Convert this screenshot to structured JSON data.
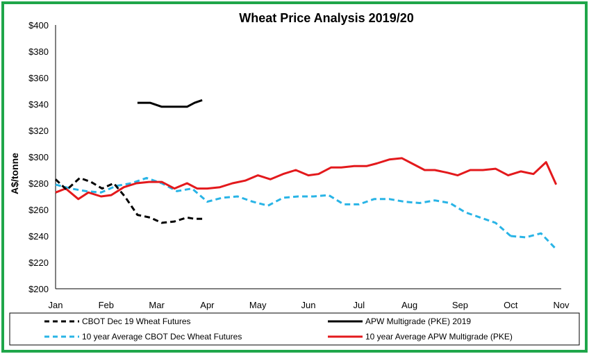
{
  "chart_data": {
    "type": "line",
    "title": "Wheat Price Analysis 2019/20",
    "xlabel": "",
    "ylabel": "A$/tonne",
    "x_ticks": [
      "Jan",
      "Feb",
      "Mar",
      "Apr",
      "May",
      "Jun",
      "Jul",
      "Aug",
      "Sep",
      "Oct",
      "Nov"
    ],
    "xlim": [
      0,
      10
    ],
    "ylim": [
      200,
      400
    ],
    "y_ticks": [
      200,
      220,
      240,
      260,
      280,
      300,
      320,
      340,
      360,
      380,
      400
    ],
    "y_tick_labels": [
      "$200",
      "$220",
      "$240",
      "$260",
      "$280",
      "$300",
      "$320",
      "$340",
      "$360",
      "$380",
      "$400"
    ],
    "grid": false,
    "legend_position": "bottom",
    "series": [
      {
        "name": "CBOT Dec 19 Wheat Futures",
        "color": "#000000",
        "style": "dashed",
        "x": [
          0,
          0.22,
          0.48,
          0.7,
          0.92,
          1.15,
          1.37,
          1.62,
          1.87,
          2.1,
          2.35,
          2.6,
          2.75,
          2.9
        ],
        "y": [
          283,
          275,
          284,
          281,
          276,
          280,
          270,
          256,
          254,
          250,
          251,
          254,
          253,
          253
        ]
      },
      {
        "name": "APW Multigrade (PKE) 2019",
        "color": "#000000",
        "style": "solid",
        "x": [
          1.62,
          1.87,
          2.1,
          2.35,
          2.6,
          2.75,
          2.9
        ],
        "y": [
          341,
          341,
          338,
          338,
          338,
          341,
          343
        ]
      },
      {
        "name": "10 year Average CBOT Dec  Wheat Futures",
        "color": "#29b4e6",
        "style": "dashed",
        "x": [
          0,
          0.3,
          0.6,
          0.9,
          1.2,
          1.5,
          1.8,
          2.1,
          2.4,
          2.7,
          3.0,
          3.3,
          3.6,
          3.9,
          4.2,
          4.5,
          4.8,
          5.1,
          5.4,
          5.7,
          6.0,
          6.3,
          6.6,
          6.9,
          7.2,
          7.5,
          7.8,
          8.1,
          8.4,
          8.7,
          9.0,
          9.3,
          9.6,
          9.9
        ],
        "y": [
          279,
          276,
          274,
          273,
          278,
          280,
          284,
          280,
          274,
          276,
          266,
          269,
          270,
          266,
          263,
          269,
          270,
          270,
          271,
          264,
          264,
          268,
          268,
          266,
          265,
          267,
          265,
          258,
          254,
          250,
          240,
          241,
          243,
          242
        ],
        "x_tail": [
          9.3,
          9.6,
          9.9
        ],
        "y_tail": [
          239,
          242,
          230
        ]
      },
      {
        "name": "10 year Average APW Multigrade (PKE)",
        "color": "#e3191c",
        "style": "solid",
        "x": [
          0,
          0.2,
          0.45,
          0.65,
          0.9,
          1.1,
          1.35,
          1.6,
          1.85,
          2.1,
          2.35,
          2.6,
          2.8,
          3.0,
          3.25,
          3.5,
          3.75,
          4.0,
          4.25,
          4.5,
          4.75,
          5.0,
          5.2,
          5.45,
          5.65,
          5.9,
          6.15,
          6.35,
          6.6,
          6.85,
          7.05,
          7.3,
          7.5,
          7.75,
          7.95,
          8.2,
          8.45,
          8.7,
          8.95,
          9.2,
          9.45,
          9.7,
          9.9
        ],
        "y": [
          273,
          276,
          268,
          273,
          270,
          271,
          277,
          280,
          281,
          281,
          276,
          280,
          276,
          276,
          277,
          280,
          282,
          286,
          283,
          287,
          290,
          286,
          287,
          292,
          292,
          293,
          293,
          295,
          298,
          299,
          295,
          290,
          290,
          288,
          286,
          290,
          290,
          291,
          286,
          289,
          287,
          296,
          279
        ]
      }
    ]
  }
}
